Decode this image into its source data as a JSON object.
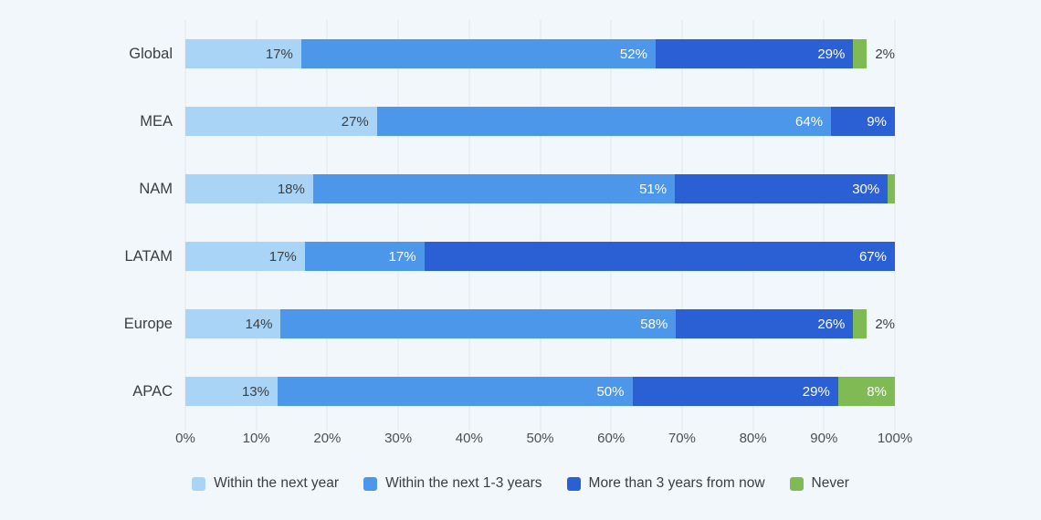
{
  "chart_data": {
    "type": "bar",
    "orientation": "horizontal",
    "stacked": true,
    "title": "",
    "xlabel": "",
    "ylabel": "",
    "xlim": [
      0,
      100
    ],
    "grid": true,
    "legend_position": "bottom",
    "background_color": "#F2F7FB",
    "gridline_color": "#E2E7EB",
    "categories": [
      "Global",
      "MEA",
      "NAM",
      "LATAM",
      "Europe",
      "APAC"
    ],
    "series": [
      {
        "name": "Within the next year",
        "color": "#A9D4F6",
        "values": [
          17,
          27,
          18,
          17,
          14,
          13
        ]
      },
      {
        "name": "Within the next 1-3 years",
        "color": "#4D97EA",
        "values": [
          52,
          64,
          51,
          17,
          58,
          50
        ]
      },
      {
        "name": "More than 3 years from now",
        "color": "#2B60D4",
        "values": [
          29,
          9,
          30,
          67,
          26,
          29
        ]
      },
      {
        "name": "Never",
        "color": "#80BA55",
        "values": [
          2,
          0,
          1,
          0,
          2,
          8
        ]
      }
    ],
    "inside_labels": [
      [
        "17%",
        "52%",
        "29%",
        ""
      ],
      [
        "27%",
        "64%",
        "9%",
        ""
      ],
      [
        "18%",
        "51%",
        "30%",
        ""
      ],
      [
        "17%",
        "17%",
        "67%",
        ""
      ],
      [
        "14%",
        "58%",
        "26%",
        ""
      ],
      [
        "13%",
        "50%",
        "29%",
        "8%"
      ]
    ],
    "outside_labels": [
      "2%",
      "",
      "",
      "",
      "2%",
      ""
    ],
    "x_ticks": [
      "0%",
      "10%",
      "20%",
      "30%",
      "40%",
      "50%",
      "60%",
      "70%",
      "80%",
      "90%",
      "100%"
    ]
  }
}
